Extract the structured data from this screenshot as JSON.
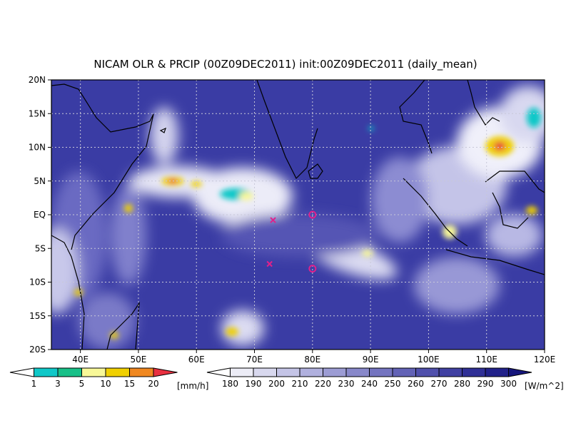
{
  "title": "NICAM OLR & PRCIP (00Z09DEC2011) init:00Z09DEC2011 (daily_mean)",
  "map": {
    "lon_range": [
      35,
      120
    ],
    "lat_range": [
      -20,
      20
    ],
    "lon_ticks": [
      "40E",
      "50E",
      "60E",
      "70E",
      "80E",
      "90E",
      "100E",
      "110E",
      "120E"
    ],
    "lat_ticks": [
      "20N",
      "15N",
      "10N",
      "5N",
      "EQ",
      "5S",
      "10S",
      "15S",
      "20S"
    ],
    "gridlines": true,
    "markers": [
      {
        "type": "circle",
        "lon": 80,
        "lat": 0,
        "color": "#e0208c"
      },
      {
        "type": "circle",
        "lon": 80,
        "lat": -8,
        "color": "#e0208c"
      },
      {
        "type": "cross",
        "lon": 73.2,
        "lat": -0.8,
        "color": "#e0208c"
      },
      {
        "type": "cross",
        "lon": 72.6,
        "lat": -7.3,
        "color": "#e0208c"
      }
    ]
  },
  "precip_legend": {
    "unit": "[mm/h]",
    "labels": [
      "1",
      "3",
      "5",
      "10",
      "15",
      "20"
    ],
    "colors": [
      "#10c8c8",
      "#18c088",
      "#f8f898",
      "#f0d000",
      "#f08820",
      "#e83040"
    ]
  },
  "olr_legend": {
    "unit": "[W/m^2]",
    "labels": [
      "180",
      "190",
      "200",
      "210",
      "220",
      "230",
      "240",
      "250",
      "260",
      "270",
      "280",
      "290",
      "300"
    ],
    "colors": [
      "#ececf6",
      "#d8d8ee",
      "#c4c4e6",
      "#b0b0de",
      "#9c9cd4",
      "#8888ca",
      "#7474c0",
      "#6262b6",
      "#5050ac",
      "#4040a2",
      "#303096",
      "#22228a",
      "#16167c"
    ]
  }
}
